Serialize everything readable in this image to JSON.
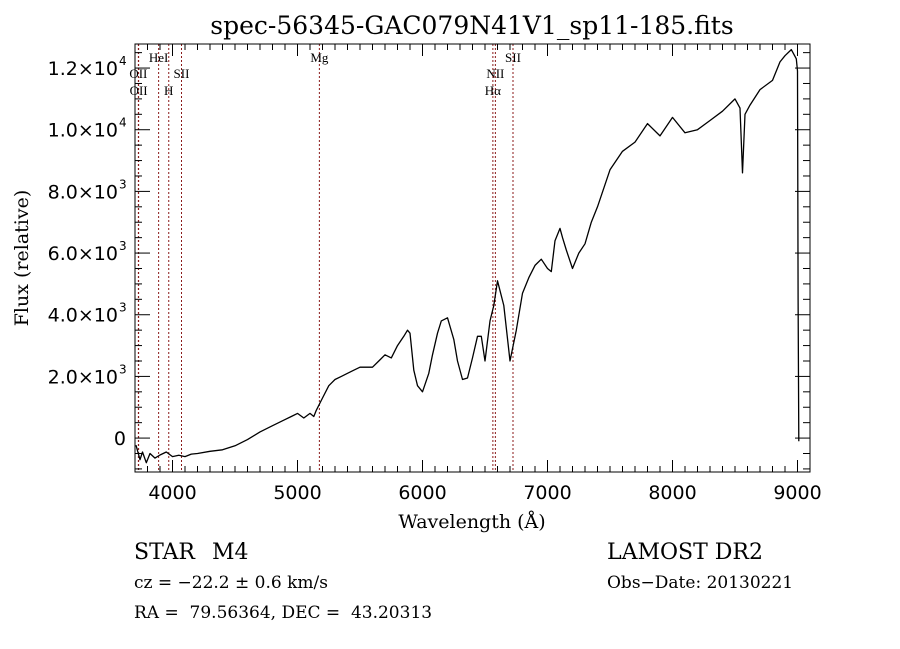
{
  "chart_data": {
    "type": "line",
    "title": "spec-56345-GAC079N41V1_sp11-185.fits",
    "xlabel": "Wavelength (Å)",
    "ylabel": "Flux (relative)",
    "xlim": [
      3700,
      9100
    ],
    "ylim": [
      -1100,
      12780
    ],
    "grid": false,
    "xticks": [
      {
        "value": 4000,
        "label": "4000"
      },
      {
        "value": 5000,
        "label": "5000"
      },
      {
        "value": 6000,
        "label": "6000"
      },
      {
        "value": 7000,
        "label": "7000"
      },
      {
        "value": 8000,
        "label": "8000"
      },
      {
        "value": 9000,
        "label": "9000"
      }
    ],
    "yticks": [
      {
        "value": 0,
        "mant": "0",
        "exp": ""
      },
      {
        "value": 2000,
        "mant": "2.0×10",
        "exp": "3"
      },
      {
        "value": 4000,
        "mant": "4.0×10",
        "exp": "3"
      },
      {
        "value": 6000,
        "mant": "6.0×10",
        "exp": "3"
      },
      {
        "value": 8000,
        "mant": "8.0×10",
        "exp": "3"
      },
      {
        "value": 10000,
        "mant": "1.0×10",
        "exp": "4"
      },
      {
        "value": 12000,
        "mant": "1.2×10",
        "exp": "4"
      }
    ],
    "series": [
      {
        "name": "spectrum",
        "color": "#000000",
        "x": [
          3708,
          3740,
          3760,
          3790,
          3820,
          3860,
          3900,
          3950,
          4000,
          4050,
          4100,
          4150,
          4200,
          4300,
          4400,
          4500,
          4600,
          4700,
          4800,
          4900,
          4950,
          5000,
          5050,
          5100,
          5130,
          5150,
          5200,
          5250,
          5300,
          5350,
          5400,
          5450,
          5500,
          5600,
          5650,
          5700,
          5750,
          5800,
          5850,
          5880,
          5900,
          5930,
          5960,
          6000,
          6050,
          6080,
          6120,
          6150,
          6200,
          6250,
          6280,
          6320,
          6360,
          6400,
          6440,
          6470,
          6500,
          6540,
          6570,
          6600,
          6650,
          6700,
          6750,
          6800,
          6850,
          6900,
          6950,
          7000,
          7030,
          7060,
          7100,
          7120,
          7150,
          7200,
          7250,
          7300,
          7350,
          7400,
          7500,
          7600,
          7700,
          7800,
          7900,
          8000,
          8100,
          8200,
          8300,
          8400,
          8500,
          8540,
          8560,
          8580,
          8620,
          8700,
          8800,
          8860,
          8900,
          8950,
          8990,
          9000,
          9005,
          9010
        ],
        "y": [
          -230,
          -700,
          -450,
          -800,
          -500,
          -650,
          -550,
          -450,
          -600,
          -560,
          -600,
          -520,
          -500,
          -430,
          -380,
          -250,
          -50,
          200,
          400,
          600,
          700,
          800,
          650,
          800,
          700,
          900,
          1300,
          1700,
          1900,
          2000,
          2100,
          2200,
          2300,
          2300,
          2500,
          2700,
          2600,
          3000,
          3300,
          3500,
          3400,
          2200,
          1700,
          1500,
          2100,
          2700,
          3400,
          3800,
          3900,
          3200,
          2500,
          1900,
          1950,
          2600,
          3300,
          3300,
          2500,
          3800,
          4300,
          5100,
          4300,
          2500,
          3500,
          4700,
          5200,
          5600,
          5800,
          5500,
          5400,
          6400,
          6800,
          6500,
          6100,
          5500,
          6000,
          6300,
          7000,
          7500,
          8700,
          9300,
          9600,
          10200,
          9800,
          10400,
          9900,
          10000,
          10300,
          10600,
          11000,
          10700,
          8600,
          10500,
          10800,
          11300,
          11600,
          12200,
          12400,
          12600,
          12300,
          11900,
          4500,
          -100
        ]
      }
    ],
    "emission_lines": [
      {
        "name": "OII",
        "wavelength": 3727,
        "label_row": 2
      },
      {
        "name": "OII",
        "wavelength": 3729,
        "label_row": 3
      },
      {
        "name": "HeI",
        "wavelength": 3889,
        "label_row": 1
      },
      {
        "name": "H",
        "wavelength": 3970,
        "label_row": 3
      },
      {
        "name": "SII",
        "wavelength": 4072,
        "label_row": 2
      },
      {
        "name": "Mg",
        "wavelength": 5175,
        "label_row": 1
      },
      {
        "name": "NII",
        "wavelength": 6583,
        "label_row": 2
      },
      {
        "name": "Hα",
        "wavelength": 6563,
        "label_row": 3
      },
      {
        "name": "SII",
        "wavelength": 6724,
        "label_row": 1
      }
    ],
    "line_color": "#8b1a1a"
  },
  "info": {
    "object_class": "STAR",
    "subclass": "M4",
    "survey": "LAMOST DR2",
    "redshift": "cz = −22.2 ± 0.6 km/s",
    "obs_date": "Obs−Date: 20130221",
    "coords": "RA =  79.56364, DEC =  43.20313"
  }
}
